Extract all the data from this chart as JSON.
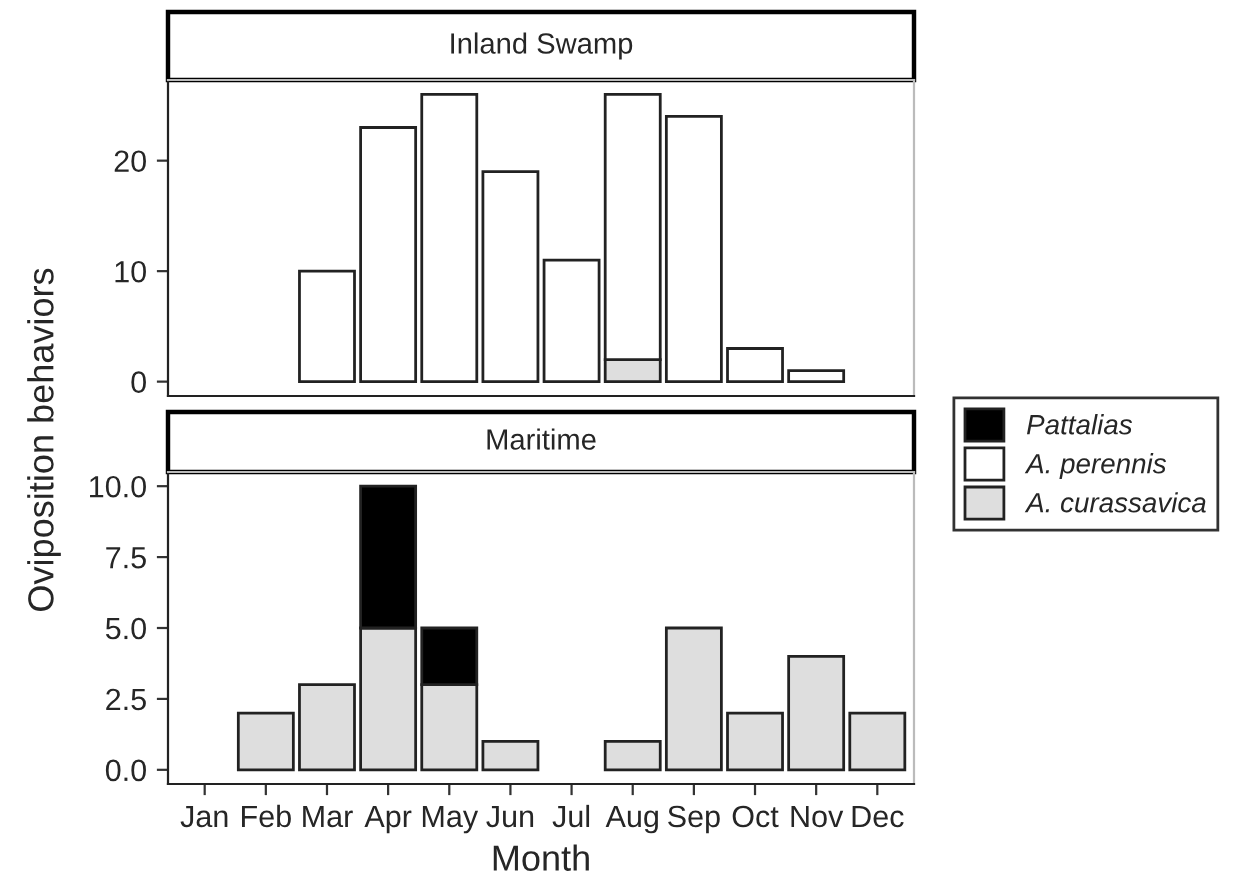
{
  "chart_data": [
    {
      "type": "bar",
      "title": "Inland Swamp",
      "ylabel": "Oviposition behaviors",
      "stacked": true,
      "tick_labels": "y",
      "legend": "right",
      "grid": false,
      "categories": [
        null,
        null,
        null,
        null,
        null,
        null,
        null,
        null,
        null,
        null,
        null,
        null
      ],
      "ylim": [
        -1.3,
        27.3
      ],
      "yticks": [
        0,
        10,
        20
      ],
      "series": [
        {
          "name": "A. curassavica",
          "color": "#dedede",
          "values": [
            null,
            null,
            null,
            null,
            null,
            null,
            null,
            2,
            null,
            null,
            null,
            null
          ]
        },
        {
          "name": "A. perennis",
          "color": "#ffffff",
          "values": [
            null,
            null,
            10,
            23,
            26,
            19,
            11,
            24,
            24,
            3,
            1,
            null
          ]
        },
        {
          "name": "Pattalias",
          "color": "#000000",
          "values": [
            null,
            null,
            null,
            null,
            null,
            null,
            null,
            null,
            null,
            null,
            null,
            null
          ]
        }
      ]
    },
    {
      "type": "bar",
      "title": "Maritime",
      "xlabel": "Month",
      "stacked": true,
      "grid": false,
      "categories": [
        "Jan",
        "Feb",
        "Mar",
        "Apr",
        "May",
        "Jun",
        "Jul",
        "Aug",
        "Sep",
        "Oct",
        "Nov",
        "Dec"
      ],
      "ylim": [
        -0.5,
        10.5
      ],
      "yticks": [
        {
          "value": 0,
          "label": "0.0"
        },
        {
          "value": 2.5,
          "label": "2.5"
        },
        {
          "value": 5,
          "label": "5.0"
        },
        {
          "value": 7.5,
          "label": "7.5"
        },
        {
          "value": 10,
          "label": "10.0"
        }
      ],
      "series": [
        {
          "color": "#dedede",
          "values": [
            null,
            2,
            3,
            5,
            3,
            1,
            null,
            1,
            5,
            2,
            4,
            2
          ]
        },
        {
          "color": "#000000",
          "values": [
            null,
            null,
            null,
            5,
            2,
            null,
            null,
            null,
            null,
            null,
            null,
            null
          ]
        }
      ]
    }
  ]
}
